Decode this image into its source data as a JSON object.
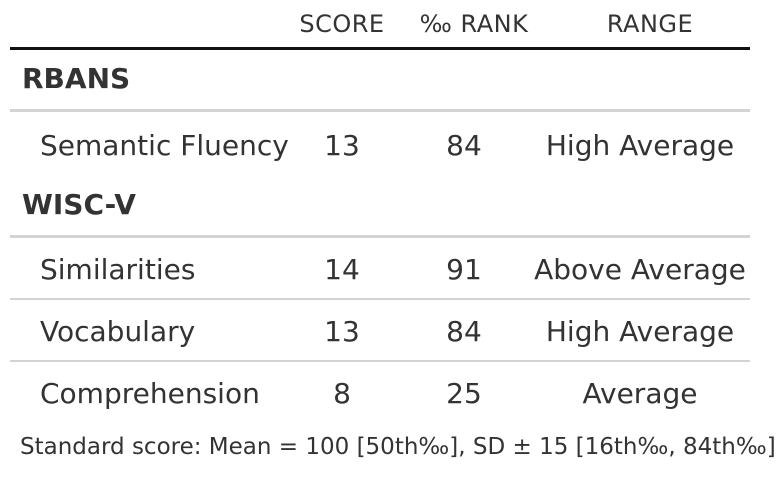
{
  "header": {
    "score": "SCORE",
    "rank": "‰ RANK",
    "range": "RANGE"
  },
  "groups": [
    {
      "label": "RBANS",
      "rows": [
        {
          "test": "Semantic Fluency",
          "score": "13",
          "rank": "84",
          "range": "High Average"
        }
      ]
    },
    {
      "label": "WISC-V",
      "rows": [
        {
          "test": "Similarities",
          "score": "14",
          "rank": "91",
          "range": "Above Average"
        },
        {
          "test": "Vocabulary",
          "score": "13",
          "rank": "84",
          "range": "High Average"
        },
        {
          "test": "Comprehension",
          "score": "8",
          "rank": "25",
          "range": "Average"
        }
      ]
    }
  ],
  "footnote": "Standard score: Mean = 100 [50th‰], SD ± 15 [16th‰, 84th‰]"
}
